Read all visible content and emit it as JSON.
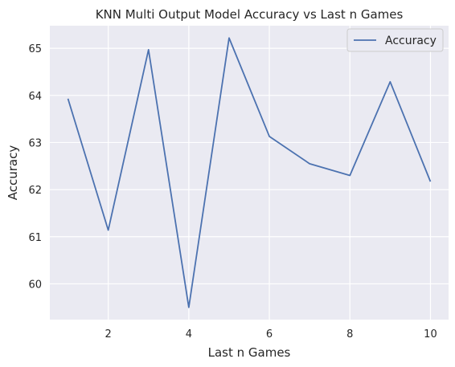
{
  "chart_data": {
    "type": "line",
    "title": "KNN Multi Output Model Accuracy vs Last n Games",
    "xlabel": "Last n Games",
    "ylabel": "Accuracy",
    "x": [
      1,
      2,
      3,
      4,
      5,
      6,
      7,
      8,
      9,
      10
    ],
    "series": [
      {
        "name": "Accuracy",
        "values": [
          63.93,
          61.14,
          64.97,
          59.5,
          65.22,
          63.13,
          62.55,
          62.3,
          64.29,
          62.17
        ]
      }
    ],
    "xlim": [
      0.55,
      10.45
    ],
    "ylim": [
      59.24,
      65.48
    ],
    "xticks": [
      2,
      4,
      6,
      8,
      10
    ],
    "xtick_labels": [
      "2",
      "4",
      "6",
      "8",
      "10"
    ],
    "yticks": [
      60,
      61,
      62,
      63,
      64,
      65
    ],
    "ytick_labels": [
      "60",
      "61",
      "62",
      "63",
      "64",
      "65"
    ],
    "grid": true,
    "legend_position": "top-right",
    "colors": {
      "line": "#4c72b0",
      "plot_background": "#eaeaf2",
      "grid": "#ffffff"
    }
  }
}
